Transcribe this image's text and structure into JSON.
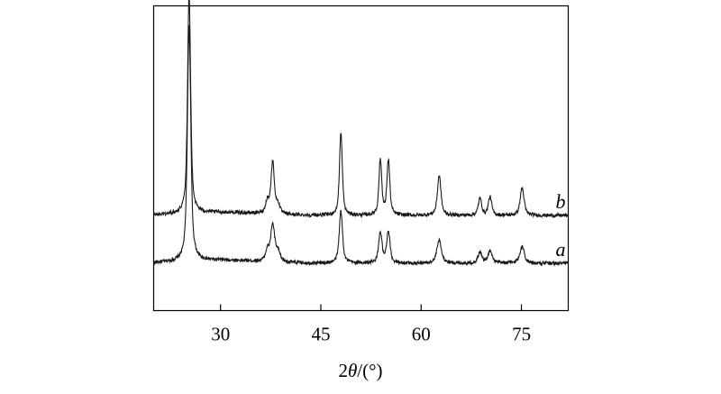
{
  "chart_data": {
    "type": "line",
    "xlabel_parts": [
      "2",
      "θ",
      "/(°)"
    ],
    "xlim": [
      20,
      82
    ],
    "ylim": [
      0,
      1
    ],
    "x_ticks": [
      30,
      45,
      60,
      75
    ],
    "y_axis_labels": false,
    "grid": false,
    "legend": "none",
    "series": [
      {
        "name": "a",
        "offset": 0.14,
        "baseline": 0.015,
        "noise": 0.006,
        "peaks": [
          {
            "x": 25.3,
            "h": 0.77,
            "w": 0.33
          },
          {
            "x": 37.0,
            "h": 0.035,
            "w": 0.35
          },
          {
            "x": 37.8,
            "h": 0.12,
            "w": 0.4
          },
          {
            "x": 38.6,
            "h": 0.03,
            "w": 0.4
          },
          {
            "x": 48.0,
            "h": 0.17,
            "w": 0.33
          },
          {
            "x": 53.9,
            "h": 0.1,
            "w": 0.33
          },
          {
            "x": 55.1,
            "h": 0.1,
            "w": 0.33
          },
          {
            "x": 62.7,
            "h": 0.075,
            "w": 0.45
          },
          {
            "x": 68.8,
            "h": 0.035,
            "w": 0.4
          },
          {
            "x": 70.3,
            "h": 0.04,
            "w": 0.4
          },
          {
            "x": 75.1,
            "h": 0.055,
            "w": 0.45
          }
        ]
      },
      {
        "name": "b",
        "offset": 0.3,
        "baseline": 0.012,
        "noise": 0.006,
        "peaks": [
          {
            "x": 25.3,
            "h": 0.72,
            "w": 0.3
          },
          {
            "x": 37.0,
            "h": 0.04,
            "w": 0.33
          },
          {
            "x": 37.8,
            "h": 0.17,
            "w": 0.33
          },
          {
            "x": 38.6,
            "h": 0.03,
            "w": 0.35
          },
          {
            "x": 48.0,
            "h": 0.27,
            "w": 0.28
          },
          {
            "x": 53.9,
            "h": 0.18,
            "w": 0.28
          },
          {
            "x": 55.1,
            "h": 0.18,
            "w": 0.28
          },
          {
            "x": 62.7,
            "h": 0.13,
            "w": 0.35
          },
          {
            "x": 68.8,
            "h": 0.055,
            "w": 0.33
          },
          {
            "x": 70.3,
            "h": 0.06,
            "w": 0.33
          },
          {
            "x": 75.1,
            "h": 0.09,
            "w": 0.38
          }
        ]
      }
    ],
    "colors": {
      "line": "#1a1a1a",
      "axis": "#000000"
    }
  }
}
